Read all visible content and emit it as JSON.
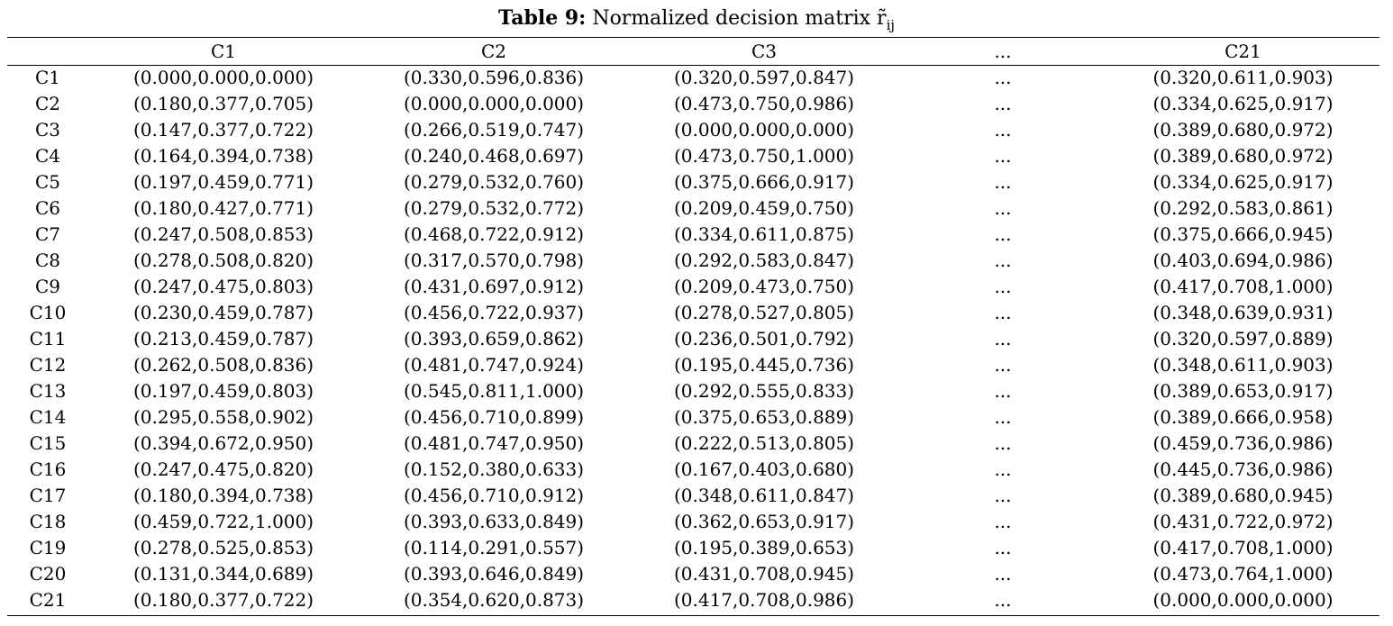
{
  "caption": {
    "label": "Table 9:",
    "text": "Normalized decision matrix",
    "symbol": "r̃",
    "subscript": "ij"
  },
  "table": {
    "headers": [
      "",
      "C1",
      "C2",
      "C3",
      "...",
      "C21"
    ],
    "rows": [
      [
        "C1",
        "(0.000,0.000,0.000)",
        "(0.330,0.596,0.836)",
        "(0.320,0.597,0.847)",
        "...",
        "(0.320,0.611,0.903)"
      ],
      [
        "C2",
        "(0.180,0.377,0.705)",
        "(0.000,0.000,0.000)",
        "(0.473,0.750,0.986)",
        "...",
        "(0.334,0.625,0.917)"
      ],
      [
        "C3",
        "(0.147,0.377,0.722)",
        "(0.266,0.519,0.747)",
        "(0.000,0.000,0.000)",
        "...",
        "(0.389,0.680,0.972)"
      ],
      [
        "C4",
        "(0.164,0.394,0.738)",
        "(0.240,0.468,0.697)",
        "(0.473,0.750,1.000)",
        "...",
        "(0.389,0.680,0.972)"
      ],
      [
        "C5",
        "(0.197,0.459,0.771)",
        "(0.279,0.532,0.760)",
        "(0.375,0.666,0.917)",
        "...",
        "(0.334,0.625,0.917)"
      ],
      [
        "C6",
        "(0.180,0.427,0.771)",
        "(0.279,0.532,0.772)",
        "(0.209,0.459,0.750)",
        "...",
        "(0.292,0.583,0.861)"
      ],
      [
        "C7",
        "(0.247,0.508,0.853)",
        "(0.468,0.722,0.912)",
        "(0.334,0.611,0.875)",
        "...",
        "(0.375,0.666,0.945)"
      ],
      [
        "C8",
        "(0.278,0.508,0.820)",
        "(0.317,0.570,0.798)",
        "(0.292,0.583,0.847)",
        "...",
        "(0.403,0.694,0.986)"
      ],
      [
        "C9",
        "(0.247,0.475,0.803)",
        "(0.431,0.697,0.912)",
        "(0.209,0.473,0.750)",
        "...",
        "(0.417,0.708,1.000)"
      ],
      [
        "C10",
        "(0.230,0.459,0.787)",
        "(0.456,0.722,0.937)",
        "(0.278,0.527,0.805)",
        "...",
        "(0.348,0.639,0.931)"
      ],
      [
        "C11",
        "(0.213,0.459,0.787)",
        "(0.393,0.659,0.862)",
        "(0.236,0.501,0.792)",
        "...",
        "(0.320,0.597,0.889)"
      ],
      [
        "C12",
        "(0.262,0.508,0.836)",
        "(0.481,0.747,0.924)",
        "(0.195,0.445,0.736)",
        "...",
        "(0.348,0.611,0.903)"
      ],
      [
        "C13",
        "(0.197,0.459,0.803)",
        "(0.545,0.811,1.000)",
        "(0.292,0.555,0.833)",
        "...",
        "(0.389,0.653,0.917)"
      ],
      [
        "C14",
        "(0.295,0.558,0.902)",
        "(0.456,0.710,0.899)",
        "(0.375,0.653,0.889)",
        "...",
        "(0.389,0.666,0.958)"
      ],
      [
        "C15",
        "(0.394,0.672,0.950)",
        "(0.481,0.747,0.950)",
        "(0.222,0.513,0.805)",
        "...",
        "(0.459,0.736,0.986)"
      ],
      [
        "C16",
        "(0.247,0.475,0.820)",
        "(0.152,0.380,0.633)",
        "(0.167,0.403,0.680)",
        "...",
        "(0.445,0.736,0.986)"
      ],
      [
        "C17",
        "(0.180,0.394,0.738)",
        "(0.456,0.710,0.912)",
        "(0.348,0.611,0.847)",
        "...",
        "(0.389,0.680,0.945)"
      ],
      [
        "C18",
        "(0.459,0.722,1.000)",
        "(0.393,0.633,0.849)",
        "(0.362,0.653,0.917)",
        "...",
        "(0.431,0.722,0.972)"
      ],
      [
        "C19",
        "(0.278,0.525,0.853)",
        "(0.114,0.291,0.557)",
        "(0.195,0.389,0.653)",
        "...",
        "(0.417,0.708,1.000)"
      ],
      [
        "C20",
        "(0.131,0.344,0.689)",
        "(0.393,0.646,0.849)",
        "(0.431,0.708,0.945)",
        "...",
        "(0.473,0.764,1.000)"
      ],
      [
        "C21",
        "(0.180,0.377,0.722)",
        "(0.354,0.620,0.873)",
        "(0.417,0.708,0.986)",
        "...",
        "(0.000,0.000,0.000)"
      ]
    ]
  }
}
